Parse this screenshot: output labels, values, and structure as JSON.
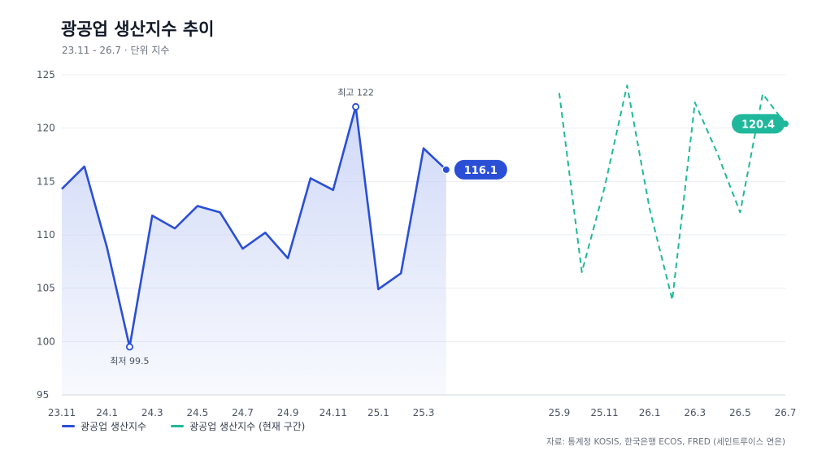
{
  "title": "광공업 생산지수 추이",
  "subtitle": "23.11 - 26.7 · 단위 지수",
  "source": "자료: 통계청 KOSIS, 한국은행 ECOS, FRED (세인트루이스 연은)",
  "colors": {
    "actual": "#2a4fd6",
    "forecast": "#1fb89c",
    "area_top": "#c7d2f6",
    "grid": "#e8ecf2",
    "axis_text": "#4b5563"
  },
  "chart_data": {
    "type": "line",
    "title": "광공업 생산지수 추이",
    "ylim": [
      95,
      125
    ],
    "y_ticks": [
      95,
      100,
      105,
      110,
      115,
      120,
      125
    ],
    "x_ticks": [
      "23.11",
      "24.1",
      "24.3",
      "24.5",
      "24.7",
      "24.9",
      "24.11",
      "25.1",
      "25.3",
      "25.9",
      "25.11",
      "26.1",
      "26.3",
      "26.5",
      "26.7"
    ],
    "grid": true,
    "legend_position": "bottom-left",
    "series": [
      {
        "name": "광공업 생산지수",
        "style": "solid",
        "fill": true,
        "x": [
          "23.11",
          "23.12",
          "24.1",
          "24.2",
          "24.3",
          "24.4",
          "24.5",
          "24.6",
          "24.7",
          "24.8",
          "24.9",
          "24.10",
          "24.11",
          "24.12",
          "25.1",
          "25.2",
          "25.3",
          "25.4"
        ],
        "values": [
          114.3,
          116.4,
          108.8,
          99.5,
          111.8,
          110.6,
          112.7,
          112.1,
          108.7,
          110.2,
          107.8,
          115.3,
          114.2,
          122.0,
          104.9,
          106.4,
          118.1,
          116.1
        ],
        "end_label": "116.1"
      },
      {
        "name": "광공업 생산지수 (현재 구간)",
        "style": "dashed",
        "x": [
          "25.9",
          "25.10",
          "25.11",
          "25.12",
          "26.1",
          "26.2",
          "26.3",
          "26.4",
          "26.5",
          "26.6",
          "26.7"
        ],
        "values": [
          123.3,
          106.5,
          114.4,
          124.0,
          112.4,
          103.9,
          122.4,
          117.6,
          112.1,
          123.2,
          120.4
        ],
        "end_label": "120.4"
      }
    ],
    "annotations": [
      {
        "label": "최고 122",
        "x": "24.12",
        "value": 122.0,
        "position": "above"
      },
      {
        "label": "최저 99.5",
        "x": "24.2",
        "value": 99.5,
        "position": "below"
      }
    ]
  }
}
